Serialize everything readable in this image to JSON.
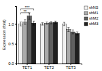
{
  "chart_data": {
    "type": "bar",
    "categories": [
      "TET1",
      "TET2",
      "TET3"
    ],
    "series": [
      {
        "name": "shNS",
        "color": "#f0f0f0",
        "values": [
          1.0,
          1.0,
          1.0
        ],
        "errors": [
          0.05,
          0.03,
          0.04
        ]
      },
      {
        "name": "shM1",
        "color": "#aaaaaa",
        "values": [
          1.05,
          1.02,
          0.86
        ],
        "errors": [
          0.06,
          0.03,
          0.05
        ]
      },
      {
        "name": "shM2",
        "color": "#606060",
        "values": [
          1.2,
          1.03,
          0.8
        ],
        "errors": [
          0.08,
          0.03,
          0.05
        ]
      },
      {
        "name": "shM3",
        "color": "#202020",
        "values": [
          1.02,
          1.04,
          0.76
        ],
        "errors": [
          0.05,
          0.03,
          0.04
        ]
      }
    ],
    "ylabel": "Expression (fold)",
    "ylim": [
      0.0,
      1.45
    ],
    "yticks": [
      {
        "value": 0.0,
        "label": "0.0"
      },
      {
        "value": 0.5,
        "label": "0.5"
      },
      {
        "value": 1.0,
        "label": "1.0"
      }
    ],
    "annotations": [
      {
        "text": "**",
        "category": "TET1",
        "from": "shNS",
        "to": "shM2",
        "y": 1.24
      },
      {
        "text": "***",
        "category": "TET1",
        "from": "shNS",
        "to": "shM3",
        "y": 1.34
      }
    ],
    "legend": "right",
    "grid": false
  }
}
